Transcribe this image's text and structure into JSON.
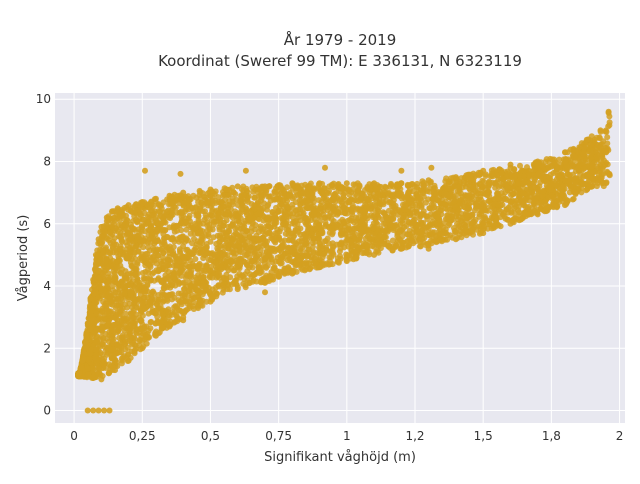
{
  "chart_data": {
    "type": "scatter",
    "title": [
      "År 1979 - 2019",
      "Koordinat (Sweref 99 TM): E 336131, N 6323119"
    ],
    "xlabel": "Signifikant våghöjd (m)",
    "ylabel": "Vågperiod (s)",
    "xlim": [
      -0.07,
      2.02
    ],
    "ylim": [
      -0.4,
      10.2
    ],
    "x_ticks": [
      0,
      0.25,
      0.5,
      0.75,
      1,
      1.25,
      1.5,
      1.75,
      2
    ],
    "x_tick_labels": [
      "0",
      "0,25",
      "0,5",
      "0,75",
      "1",
      "1,2",
      "1,5",
      "1,8",
      "2"
    ],
    "y_ticks": [
      0,
      2,
      4,
      6,
      8,
      10
    ],
    "y_tick_labels": [
      "0",
      "2",
      "4",
      "6",
      "8",
      "10"
    ],
    "grid": true,
    "legend": "none",
    "marker_color": "#D4A020",
    "plot_background": "#E8E8F0",
    "series": [
      {
        "values": [
          {
            "x": 0.02,
            "y": 1.2
          },
          {
            "x": 0.03,
            "y": 1.6
          },
          {
            "x": 0.04,
            "y": 2.2
          },
          {
            "x": 0.05,
            "y": 2.8
          },
          {
            "x": 0.06,
            "y": 3.6
          },
          {
            "x": 0.07,
            "y": 4.2
          },
          {
            "x": 0.08,
            "y": 5.0
          },
          {
            "x": 0.09,
            "y": 5.5
          },
          {
            "x": 0.1,
            "y": 5.9
          },
          {
            "x": 0.12,
            "y": 6.2
          },
          {
            "x": 0.14,
            "y": 6.4
          },
          {
            "x": 0.16,
            "y": 6.5
          },
          {
            "x": 0.2,
            "y": 6.6
          },
          {
            "x": 0.25,
            "y": 6.7
          },
          {
            "x": 0.3,
            "y": 6.8
          },
          {
            "x": 0.35,
            "y": 6.9
          },
          {
            "x": 0.4,
            "y": 7.0
          },
          {
            "x": 0.5,
            "y": 7.1
          },
          {
            "x": 0.6,
            "y": 7.2
          },
          {
            "x": 0.7,
            "y": 7.2
          },
          {
            "x": 0.8,
            "y": 7.3
          },
          {
            "x": 0.9,
            "y": 7.3
          },
          {
            "x": 1.0,
            "y": 7.3
          },
          {
            "x": 1.1,
            "y": 7.3
          },
          {
            "x": 1.2,
            "y": 7.3
          },
          {
            "x": 1.3,
            "y": 7.4
          },
          {
            "x": 1.4,
            "y": 7.5
          },
          {
            "x": 1.5,
            "y": 7.7
          },
          {
            "x": 1.6,
            "y": 7.8
          },
          {
            "x": 1.7,
            "y": 8.0
          },
          {
            "x": 1.8,
            "y": 8.3
          },
          {
            "x": 1.88,
            "y": 8.7
          },
          {
            "x": 1.93,
            "y": 9.0
          },
          {
            "x": 1.96,
            "y": 9.6
          },
          {
            "x": 0.1,
            "y": 1.0
          },
          {
            "x": 0.15,
            "y": 1.3
          },
          {
            "x": 0.2,
            "y": 1.6
          },
          {
            "x": 0.25,
            "y": 2.0
          },
          {
            "x": 0.3,
            "y": 2.4
          },
          {
            "x": 0.35,
            "y": 2.7
          },
          {
            "x": 0.4,
            "y": 3.0
          },
          {
            "x": 0.5,
            "y": 3.5
          },
          {
            "x": 0.6,
            "y": 3.9
          },
          {
            "x": 0.7,
            "y": 4.1
          },
          {
            "x": 0.8,
            "y": 4.4
          },
          {
            "x": 0.9,
            "y": 4.6
          },
          {
            "x": 1.0,
            "y": 4.8
          },
          {
            "x": 1.1,
            "y": 5.0
          },
          {
            "x": 1.2,
            "y": 5.2
          },
          {
            "x": 1.3,
            "y": 5.3
          },
          {
            "x": 1.4,
            "y": 5.5
          },
          {
            "x": 1.5,
            "y": 5.7
          },
          {
            "x": 1.6,
            "y": 6.0
          },
          {
            "x": 1.7,
            "y": 6.3
          },
          {
            "x": 1.8,
            "y": 6.6
          },
          {
            "x": 1.9,
            "y": 7.2
          },
          {
            "x": 0.05,
            "y": 0.0
          },
          {
            "x": 0.07,
            "y": 0.0
          },
          {
            "x": 0.09,
            "y": 0.0
          },
          {
            "x": 0.11,
            "y": 0.0
          },
          {
            "x": 0.13,
            "y": 0.0
          },
          {
            "x": 0.26,
            "y": 7.7
          },
          {
            "x": 0.39,
            "y": 7.6
          },
          {
            "x": 0.63,
            "y": 7.7
          },
          {
            "x": 0.92,
            "y": 7.8
          },
          {
            "x": 1.2,
            "y": 7.7
          },
          {
            "x": 1.31,
            "y": 7.8
          },
          {
            "x": 1.6,
            "y": 7.9
          },
          {
            "x": 1.8,
            "y": 8.0
          },
          {
            "x": 0.21,
            "y": 1.9
          },
          {
            "x": 0.4,
            "y": 2.9
          },
          {
            "x": 0.7,
            "y": 3.8
          },
          {
            "x": 1.3,
            "y": 5.2
          }
        ]
      }
    ]
  }
}
